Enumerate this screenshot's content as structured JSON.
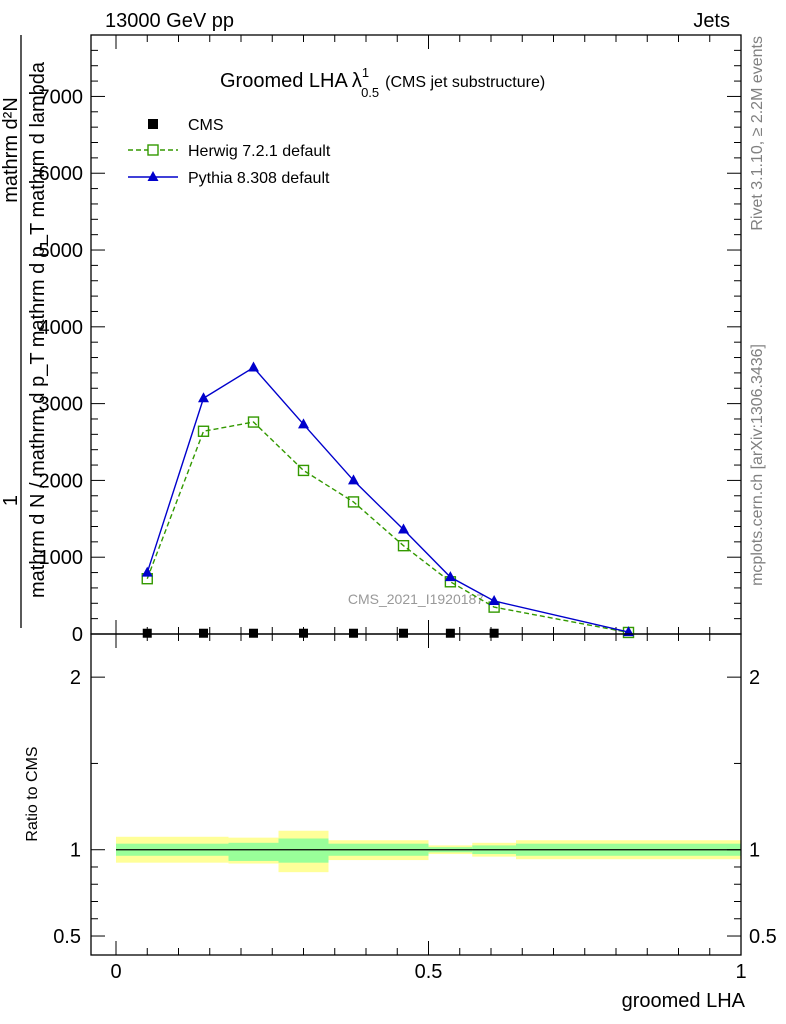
{
  "header": {
    "left": "13000 GeV pp",
    "right": "Jets"
  },
  "side_text": {
    "rivet": "Rivet 3.1.10, ≥ 2.2M events",
    "mcplots": "mcplots.cern.ch [arXiv:1306.3436]"
  },
  "watermark": "CMS_2021_I1920187",
  "chart_data": [
    {
      "type": "line",
      "title": "Groomed LHA",
      "title_symbol": "λ",
      "title_sup": "1",
      "title_sub": "0.5",
      "title_suffix": "(CMS jet substructure)",
      "ylabel_numerator": "mathrm d²N",
      "ylabel_denominator": "mathrm d N / mathrm d p_T mathrm d p_T mathrm d lambda",
      "ylabel_prefix": "1",
      "xlim": [
        -0.04,
        1.0
      ],
      "ylim": [
        0,
        7800
      ],
      "yticks": [
        0,
        1000,
        2000,
        3000,
        4000,
        5000,
        6000,
        7000
      ],
      "ytick_labels": [
        "0",
        "1000",
        "2000",
        "3000",
        "4000",
        "5000",
        "6000",
        "7000"
      ],
      "legend_position": "top-left",
      "series": [
        {
          "name": "CMS",
          "marker": "square-filled",
          "color": "#000000",
          "x": [
            0.05,
            0.14,
            0.22,
            0.3,
            0.38,
            0.46,
            0.535,
            0.605
          ],
          "y": [
            10,
            10,
            10,
            10,
            10,
            10,
            10,
            10
          ]
        },
        {
          "name": "Herwig 7.2.1 default",
          "marker": "square-open",
          "line": "dashed",
          "color": "#339900",
          "x": [
            0.05,
            0.14,
            0.22,
            0.3,
            0.38,
            0.46,
            0.535,
            0.605,
            0.82
          ],
          "y": [
            720,
            2640,
            2760,
            2130,
            1720,
            1150,
            680,
            350,
            20
          ]
        },
        {
          "name": "Pythia 8.308 default",
          "marker": "triangle-filled",
          "line": "solid",
          "color": "#0000cc",
          "x": [
            0.05,
            0.14,
            0.22,
            0.3,
            0.38,
            0.46,
            0.535,
            0.605,
            0.82
          ],
          "y": [
            800,
            3070,
            3470,
            2730,
            2000,
            1360,
            740,
            430,
            25
          ]
        }
      ]
    },
    {
      "type": "area",
      "ylabel": "Ratio to CMS",
      "xlabel": "groomed LHA",
      "xlim": [
        -0.04,
        1.0
      ],
      "ylim": [
        0.39,
        2.25
      ],
      "xticks": [
        0,
        0.5,
        1
      ],
      "xtick_labels": [
        "0",
        "0.5",
        "1"
      ],
      "yticks": [
        0.5,
        1,
        2
      ],
      "ytick_labels": [
        "0.5",
        "1",
        "2"
      ],
      "bands": {
        "bin_edges": [
          0.0,
          0.18,
          0.26,
          0.34,
          0.5,
          0.57,
          0.64,
          1.0
        ],
        "stat_low": [
          0.965,
          0.935,
          0.925,
          0.965,
          0.985,
          0.975,
          0.965,
          0.885
        ],
        "stat_high": [
          1.035,
          1.04,
          1.065,
          1.035,
          1.015,
          1.025,
          1.035,
          1.1
        ],
        "tot_low": [
          0.925,
          0.92,
          0.87,
          0.94,
          0.975,
          0.96,
          0.945,
          0.765
        ],
        "tot_high": [
          1.075,
          1.07,
          1.11,
          1.055,
          1.025,
          1.04,
          1.055,
          1.19
        ],
        "stat_color": "#99ff99",
        "tot_color": "#ffff99"
      }
    }
  ]
}
